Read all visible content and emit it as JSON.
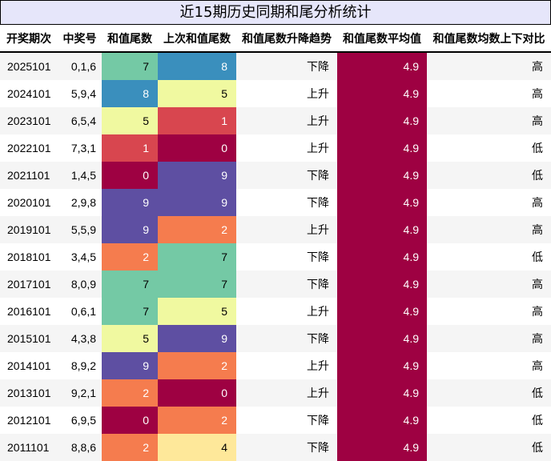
{
  "title": "近15期历史同期和尾分析统计",
  "columns": [
    "开奖期次",
    "中奖号",
    "和值尾数",
    "上次和值尾数",
    "和值尾数升降趋势",
    "和值尾数平均值",
    "和值尾数均数上下对比"
  ],
  "colors": {
    "title_bg": "#e6e6fa",
    "stripe": "#f5f5f5",
    "scale": {
      "0": "#9e0142",
      "1": "#d8464f",
      "2": "#f57c4e",
      "4": "#fee89a",
      "5": "#f0f9a0",
      "7": "#74c9a5",
      "8": "#3a8fbd",
      "9": "#5e4fa2"
    }
  },
  "rows": [
    {
      "issue": "2025101",
      "numbers": "0,1,6",
      "sum_tail": "7",
      "prev_sum_tail": "8",
      "trend": "下降",
      "avg": "4.9",
      "compare": "高"
    },
    {
      "issue": "2024101",
      "numbers": "5,9,4",
      "sum_tail": "8",
      "prev_sum_tail": "5",
      "trend": "上升",
      "avg": "4.9",
      "compare": "高"
    },
    {
      "issue": "2023101",
      "numbers": "6,5,4",
      "sum_tail": "5",
      "prev_sum_tail": "1",
      "trend": "上升",
      "avg": "4.9",
      "compare": "高"
    },
    {
      "issue": "2022101",
      "numbers": "7,3,1",
      "sum_tail": "1",
      "prev_sum_tail": "0",
      "trend": "上升",
      "avg": "4.9",
      "compare": "低"
    },
    {
      "issue": "2021101",
      "numbers": "1,4,5",
      "sum_tail": "0",
      "prev_sum_tail": "9",
      "trend": "下降",
      "avg": "4.9",
      "compare": "低"
    },
    {
      "issue": "2020101",
      "numbers": "2,9,8",
      "sum_tail": "9",
      "prev_sum_tail": "9",
      "trend": "下降",
      "avg": "4.9",
      "compare": "高"
    },
    {
      "issue": "2019101",
      "numbers": "5,5,9",
      "sum_tail": "9",
      "prev_sum_tail": "2",
      "trend": "上升",
      "avg": "4.9",
      "compare": "高"
    },
    {
      "issue": "2018101",
      "numbers": "3,4,5",
      "sum_tail": "2",
      "prev_sum_tail": "7",
      "trend": "下降",
      "avg": "4.9",
      "compare": "低"
    },
    {
      "issue": "2017101",
      "numbers": "8,0,9",
      "sum_tail": "7",
      "prev_sum_tail": "7",
      "trend": "下降",
      "avg": "4.9",
      "compare": "高"
    },
    {
      "issue": "2016101",
      "numbers": "0,6,1",
      "sum_tail": "7",
      "prev_sum_tail": "5",
      "trend": "上升",
      "avg": "4.9",
      "compare": "高"
    },
    {
      "issue": "2015101",
      "numbers": "4,3,8",
      "sum_tail": "5",
      "prev_sum_tail": "9",
      "trend": "下降",
      "avg": "4.9",
      "compare": "高"
    },
    {
      "issue": "2014101",
      "numbers": "8,9,2",
      "sum_tail": "9",
      "prev_sum_tail": "2",
      "trend": "上升",
      "avg": "4.9",
      "compare": "高"
    },
    {
      "issue": "2013101",
      "numbers": "9,2,1",
      "sum_tail": "2",
      "prev_sum_tail": "0",
      "trend": "上升",
      "avg": "4.9",
      "compare": "低"
    },
    {
      "issue": "2012101",
      "numbers": "6,9,5",
      "sum_tail": "0",
      "prev_sum_tail": "2",
      "trend": "下降",
      "avg": "4.9",
      "compare": "低"
    },
    {
      "issue": "2011101",
      "numbers": "8,8,6",
      "sum_tail": "2",
      "prev_sum_tail": "4",
      "trend": "下降",
      "avg": "4.9",
      "compare": "低"
    }
  ]
}
